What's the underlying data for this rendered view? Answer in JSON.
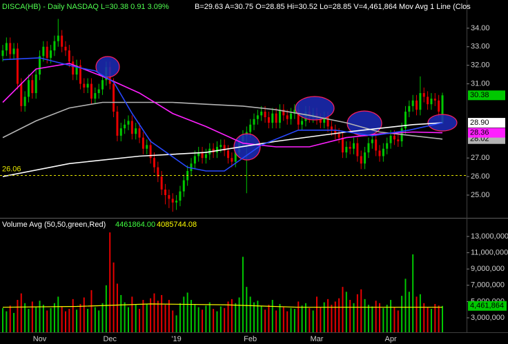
{
  "chart_data": [
    {
      "type": "candlestick",
      "title": "DISCA(HB) - Daily  NASDAQ L=30.38 0.91 3.09%",
      "subtitle": "B=29.63 A=30.75 O=28.85 Hi=30.52 Lo=28.85 V=4,461,864 Mov Avg 1 Line (Clos",
      "categories": [
        null,
        null,
        null,
        null,
        null,
        null,
        null,
        null,
        null,
        null,
        "Nov",
        null,
        null,
        null,
        null,
        null,
        null,
        null,
        null,
        null,
        null,
        null,
        null,
        null,
        null,
        null,
        null,
        null,
        null,
        "Dec",
        null,
        null,
        null,
        null,
        null,
        null,
        null,
        null,
        null,
        null,
        null,
        null,
        null,
        null,
        null,
        null,
        null,
        "'19",
        null,
        null,
        null,
        null,
        null,
        null,
        null,
        null,
        null,
        null,
        null,
        null,
        null,
        null,
        null,
        null,
        null,
        null,
        null,
        "Feb",
        null,
        null,
        null,
        null,
        null,
        null,
        null,
        null,
        null,
        null,
        null,
        null,
        null,
        null,
        null,
        null,
        null,
        "Mar",
        null,
        null,
        null,
        null,
        null,
        null,
        null,
        null,
        null,
        null,
        null,
        null,
        null,
        null,
        null,
        null,
        null,
        null,
        null,
        "Apr",
        null,
        null,
        null,
        null,
        null,
        null,
        null,
        null,
        null,
        null,
        null,
        null,
        null,
        null
      ],
      "open": [
        32.5,
        32.8,
        33.2,
        32.6,
        32.9,
        31.0,
        29.8,
        30.3,
        31.2,
        30.5,
        31.5,
        32.5,
        33.0,
        32.4,
        32.8,
        33.3,
        33.6,
        33.0,
        32.8,
        32.2,
        31.5,
        32.0,
        31.0,
        30.8,
        31.0,
        30.2,
        30.5,
        30.7,
        31.2,
        31.9,
        31.0,
        29.5,
        28.2,
        28.6,
        28.8,
        29.0,
        28.3,
        28.6,
        28.1,
        27.5,
        27.7,
        27.0,
        26.5,
        26.0,
        25.3,
        25.0,
        24.8,
        24.6,
        24.7,
        25.2,
        25.8,
        26.3,
        26.7,
        27.1,
        27.3,
        27.0,
        27.2,
        27.5,
        27.3,
        27.6,
        27.7,
        27.4,
        27.0,
        26.8,
        27.3,
        27.9,
        28.2,
        28.4,
        28.8,
        29.1,
        29.3,
        29.5,
        29.2,
        28.9,
        29.4,
        28.9,
        29.6,
        29.3,
        29.1,
        29.4,
        29.6,
        28.8,
        29.0,
        29.5,
        29.2,
        29.4,
        29.1,
        28.9,
        29.2,
        28.7,
        28.5,
        28.3,
        28.1,
        27.3,
        27.6,
        27.5,
        27.8,
        27.1,
        26.7,
        27.3,
        27.8,
        28.0,
        27.4,
        27.1,
        27.5,
        27.8,
        28.2,
        28.0,
        27.9,
        28.6,
        29.5,
        29.8,
        30.1,
        29.6,
        30.5,
        30.3,
        29.9,
        30.2,
        30.1,
        28.85
      ],
      "high": [
        33.1,
        33.5,
        33.5,
        33.2,
        33.2,
        31.3,
        30.6,
        31.5,
        31.5,
        31.8,
        32.8,
        33.3,
        33.3,
        33.1,
        33.6,
        34.5,
        33.9,
        33.3,
        33.1,
        32.5,
        32.3,
        32.3,
        31.3,
        31.3,
        31.3,
        30.8,
        31.0,
        31.5,
        32.2,
        32.2,
        31.3,
        29.8,
        28.9,
        29.1,
        29.3,
        29.3,
        28.9,
        28.9,
        28.4,
        28.0,
        28.0,
        27.3,
        26.8,
        26.3,
        25.6,
        25.3,
        25.1,
        25.0,
        25.5,
        26.1,
        26.6,
        27.0,
        27.4,
        27.6,
        27.6,
        27.5,
        27.8,
        27.8,
        27.9,
        28.0,
        28.0,
        27.7,
        27.3,
        27.6,
        28.2,
        28.5,
        28.7,
        29.1,
        29.4,
        29.6,
        29.8,
        29.8,
        29.5,
        29.7,
        29.7,
        29.9,
        29.9,
        29.6,
        29.7,
        29.9,
        29.9,
        29.3,
        29.8,
        29.8,
        29.7,
        29.7,
        29.4,
        29.5,
        29.5,
        29.0,
        28.8,
        28.6,
        28.4,
        27.9,
        27.9,
        28.1,
        28.1,
        27.4,
        27.6,
        28.1,
        28.3,
        28.3,
        27.7,
        27.8,
        28.1,
        28.5,
        28.5,
        28.3,
        28.9,
        29.8,
        30.1,
        30.4,
        30.4,
        31.4,
        30.8,
        30.6,
        30.5,
        30.5,
        30.4,
        30.52
      ],
      "low": [
        32.2,
        32.5,
        32.3,
        32.3,
        30.7,
        29.5,
        29.5,
        30.0,
        30.2,
        30.2,
        31.2,
        32.2,
        32.1,
        32.1,
        32.5,
        33.0,
        32.7,
        32.5,
        31.9,
        31.2,
        31.2,
        30.7,
        30.5,
        30.5,
        29.9,
        29.9,
        30.2,
        30.4,
        30.9,
        30.7,
        29.2,
        27.9,
        27.9,
        28.3,
        28.5,
        28.0,
        28.0,
        27.8,
        27.2,
        27.2,
        26.7,
        26.2,
        25.7,
        25.0,
        24.5,
        24.3,
        24.1,
        24.2,
        24.4,
        24.9,
        25.5,
        26.0,
        26.4,
        26.8,
        26.7,
        26.7,
        26.9,
        27.0,
        27.0,
        27.3,
        27.1,
        26.7,
        26.5,
        26.5,
        27.0,
        27.6,
        25.1,
        28.1,
        28.5,
        28.8,
        29.0,
        28.9,
        28.6,
        28.6,
        28.6,
        28.6,
        29.0,
        28.8,
        28.8,
        29.1,
        28.5,
        28.5,
        28.7,
        28.9,
        28.9,
        28.8,
        28.6,
        28.6,
        28.4,
        28.2,
        28.0,
        27.8,
        27.0,
        27.0,
        27.2,
        27.2,
        26.8,
        26.4,
        26.4,
        27.0,
        27.5,
        27.1,
        26.8,
        26.8,
        27.2,
        27.5,
        27.7,
        27.6,
        27.6,
        28.3,
        29.2,
        29.5,
        29.3,
        29.3,
        30.0,
        29.6,
        29.6,
        29.8,
        29.2,
        28.85
      ],
      "close": [
        32.8,
        33.2,
        32.6,
        32.9,
        31.0,
        29.8,
        30.3,
        31.2,
        30.5,
        31.5,
        32.5,
        33.0,
        32.4,
        32.8,
        33.3,
        33.6,
        33.0,
        32.8,
        32.2,
        31.5,
        32.0,
        31.0,
        30.8,
        31.0,
        30.2,
        30.5,
        30.7,
        31.2,
        31.9,
        31.0,
        29.5,
        28.2,
        28.6,
        28.8,
        29.0,
        28.3,
        28.6,
        28.1,
        27.5,
        27.7,
        27.0,
        26.5,
        26.0,
        25.3,
        25.0,
        24.8,
        24.6,
        24.7,
        25.2,
        25.8,
        26.3,
        26.7,
        27.1,
        27.3,
        27.0,
        27.2,
        27.5,
        27.3,
        27.6,
        27.7,
        27.4,
        27.0,
        26.8,
        27.3,
        27.9,
        28.2,
        28.4,
        28.8,
        29.1,
        29.3,
        29.5,
        29.2,
        28.9,
        29.4,
        28.9,
        29.6,
        29.3,
        29.1,
        29.4,
        29.6,
        28.8,
        29.0,
        29.5,
        29.2,
        29.4,
        29.1,
        28.9,
        29.2,
        28.7,
        28.5,
        28.3,
        28.1,
        27.3,
        27.6,
        27.5,
        27.8,
        27.1,
        26.7,
        27.3,
        27.8,
        28.0,
        27.4,
        27.1,
        27.5,
        27.8,
        28.2,
        28.0,
        27.9,
        28.6,
        29.5,
        29.8,
        30.1,
        29.6,
        30.5,
        30.3,
        29.9,
        30.2,
        30.1,
        29.5,
        30.38
      ],
      "up_color": "#00c800",
      "down_color": "#e80000",
      "series": [
        {
          "color": "#b4b4b4",
          "x": [
            0,
            9,
            18,
            27,
            37,
            46,
            55,
            65,
            74,
            83,
            93,
            102,
            111,
            119
          ],
          "values": [
            28.1,
            29.0,
            29.7,
            30.0,
            30.0,
            30.0,
            29.9,
            29.8,
            29.6,
            29.3,
            28.9,
            28.4,
            28.2,
            28.02
          ]
        },
        {
          "color": "#ff20ff",
          "x": [
            0,
            9,
            18,
            27,
            37,
            46,
            55,
            65,
            74,
            83,
            93,
            102,
            111,
            119
          ],
          "values": [
            30.0,
            31.8,
            32.1,
            31.4,
            30.5,
            29.4,
            28.7,
            27.8,
            27.6,
            27.6,
            28.1,
            28.3,
            28.4,
            28.36
          ]
        },
        {
          "color": "#ffffff",
          "x": [
            0,
            18,
            37,
            55,
            74,
            93,
            111,
            119
          ],
          "values": [
            26.0,
            26.7,
            27.1,
            27.3,
            27.9,
            28.4,
            28.8,
            28.9
          ],
          "last_label": {
            "value": 28.9,
            "label": "28.90"
          }
        },
        {
          "color": "#2848ff",
          "x": [
            0,
            10,
            20,
            25,
            30,
            35,
            40,
            45,
            50,
            55,
            60,
            70,
            80,
            90,
            100,
            110,
            119
          ],
          "values": [
            32.3,
            32.4,
            31.9,
            31.7,
            31.1,
            29.4,
            27.9,
            27.2,
            26.5,
            26.3,
            26.3,
            27.7,
            28.5,
            28.5,
            28.2,
            28.5,
            28.9
          ]
        }
      ],
      "reference_line": 26.06,
      "ylim": [
        23.81,
        35.52
      ],
      "yticks": [
        {
          "value": 34,
          "label": "34.00"
        },
        {
          "value": 33,
          "label": "33.00"
        },
        {
          "value": 32,
          "label": "32.00"
        },
        {
          "value": 31,
          "label": "31.00"
        },
        {
          "value": 27,
          "label": "27.00"
        },
        {
          "value": 26,
          "label": "26.00"
        },
        {
          "value": 25,
          "label": "25.00"
        }
      ],
      "grid": false
    },
    {
      "type": "bar",
      "title": "Volume Avg (50,50,green,Red)",
      "readouts": [
        {
          "value": 4461864,
          "label": "4461864.00",
          "color": "#40ff40"
        },
        {
          "value": 4085744.08,
          "label": "4085744.08",
          "color": "#ffff00"
        }
      ],
      "values": [
        4200000,
        3800000,
        4500000,
        3600000,
        5200000,
        6000000,
        4800000,
        4100000,
        5000000,
        4300000,
        5100000,
        4600000,
        3900000,
        4200000,
        4800000,
        5600000,
        4400000,
        3800000,
        4100000,
        5300000,
        4000000,
        4700000,
        5500000,
        4100000,
        6400000,
        4300000,
        3900000,
        4800000,
        7000000,
        13500000,
        9800000,
        7200000,
        5800000,
        4900000,
        4300000,
        5600000,
        4600000,
        4100000,
        5200000,
        4700000,
        5400000,
        6000000,
        5100000,
        5800000,
        4600000,
        5200000,
        3900000,
        3300000,
        4800000,
        5600000,
        6100000,
        5200000,
        4700000,
        4300000,
        4000000,
        4500000,
        4900000,
        4100000,
        3800000,
        4400000,
        4200000,
        5000000,
        5300000,
        4800000,
        5500000,
        10500000,
        6800000,
        5600000,
        4900000,
        5100000,
        4400000,
        4000000,
        4600000,
        5200000,
        3900000,
        4700000,
        4300000,
        3800000,
        4200000,
        4100000,
        5000000,
        4500000,
        4800000,
        4200000,
        3900000,
        5600000,
        4300000,
        4900000,
        5300000,
        4600000,
        5000000,
        5400000,
        6800000,
        6200000,
        5200000,
        4800000,
        5900000,
        6500000,
        5300000,
        4600000,
        4400000,
        5100000,
        4800000,
        4200000,
        4600000,
        5200000,
        4300000,
        3900000,
        5700000,
        7800000,
        6200000,
        10800000,
        5600000,
        5900000,
        4800000,
        4300000,
        4100000,
        4700000,
        4500000,
        4461864
      ],
      "last_label": {
        "value": 4461864,
        "label": "4,461,864"
      },
      "average": {
        "color": "#ffff00",
        "x": [
          0,
          20,
          40,
          60,
          80,
          100,
          119
        ],
        "values": [
          4300000,
          4400000,
          4700000,
          4600000,
          4300000,
          4300000,
          4300000
        ]
      },
      "ylim": [
        1220000,
        15120000
      ],
      "yticks": [
        {
          "value": 13000000,
          "label": "13,000,000"
        },
        {
          "value": 11000000,
          "label": "11,000,000"
        },
        {
          "value": 9000000,
          "label": "9,000,000"
        },
        {
          "value": 7000000,
          "label": "7,000,000"
        },
        {
          "value": 5000000,
          "label": "5,000,000"
        },
        {
          "value": 3000000,
          "label": "3,000,000"
        }
      ]
    }
  ]
}
